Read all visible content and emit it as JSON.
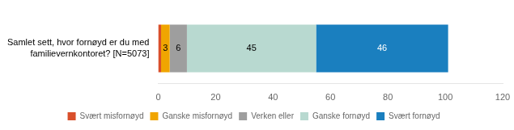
{
  "chart_data": {
    "type": "bar",
    "orientation": "horizontal",
    "stacked": true,
    "categories": [
      "Samlet sett, hvor fornøyd er du med\nfamilievernkontoret? [N=5073]"
    ],
    "series": [
      {
        "name": "Svært misfornøyd",
        "color": "#d94f2b",
        "values": [
          1
        ],
        "value_labels": [
          null
        ]
      },
      {
        "name": "Ganske misfornøyd",
        "color": "#f0a500",
        "values": [
          3
        ]
      },
      {
        "name": "Verken eller",
        "color": "#9e9e9e",
        "values": [
          6
        ]
      },
      {
        "name": "Ganske fornøyd",
        "color": "#b8d9d0",
        "values": [
          45
        ]
      },
      {
        "name": "Svært fornøyd",
        "color": "#1a7fbf",
        "values": [
          46
        ]
      }
    ],
    "xlim": [
      0,
      120
    ],
    "xticks": [
      0,
      20,
      40,
      60,
      80,
      100,
      120
    ],
    "data_labels": true,
    "grid": false,
    "legend": "bottom"
  }
}
